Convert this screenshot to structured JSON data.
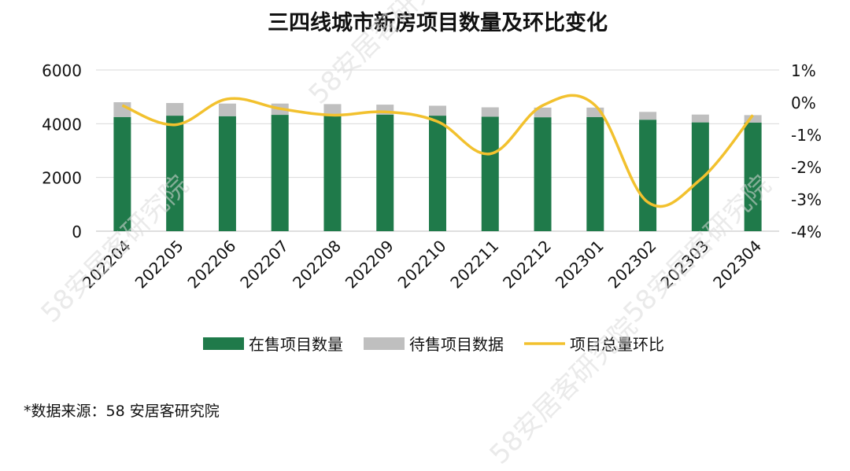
{
  "watermark": "58安居客研究院",
  "source": "*数据来源：58 安居客研究院",
  "chart_data": {
    "type": "bar",
    "title": "三四线城市新房项目数量及环比变化",
    "categories": [
      "202204",
      "202205",
      "202206",
      "202207",
      "202208",
      "202209",
      "202210",
      "202211",
      "202212",
      "202301",
      "202302",
      "202303",
      "202304"
    ],
    "series": [
      {
        "name": "在售项目数量",
        "type": "bar",
        "stack": "a",
        "axis": "left",
        "color": "#1f7a4a",
        "values": [
          4250,
          4300,
          4280,
          4330,
          4350,
          4340,
          4300,
          4260,
          4240,
          4250,
          4150,
          4050,
          4040
        ]
      },
      {
        "name": "待售项目数据",
        "type": "bar",
        "stack": "a",
        "axis": "left",
        "color": "#bfbfbf",
        "values": [
          550,
          470,
          470,
          420,
          380,
          370,
          370,
          350,
          360,
          350,
          290,
          290,
          280
        ]
      },
      {
        "name": "项目总量环比",
        "type": "line",
        "axis": "right",
        "color": "#f2c12e",
        "unit": "%",
        "values": [
          -0.1,
          -0.7,
          0.1,
          -0.2,
          -0.4,
          -0.3,
          -0.6,
          -1.6,
          -0.1,
          -0.1,
          -3.1,
          -2.4,
          -0.4
        ]
      }
    ],
    "y_left": {
      "min": 0,
      "max": 6000,
      "ticks": [
        0,
        2000,
        4000,
        6000
      ]
    },
    "y_right": {
      "min": -4,
      "max": 1,
      "ticks": [
        "1%",
        "0%",
        "-1%",
        "-2%",
        "-3%",
        "-4%"
      ]
    },
    "gridlines": true,
    "legend": "bottom"
  }
}
